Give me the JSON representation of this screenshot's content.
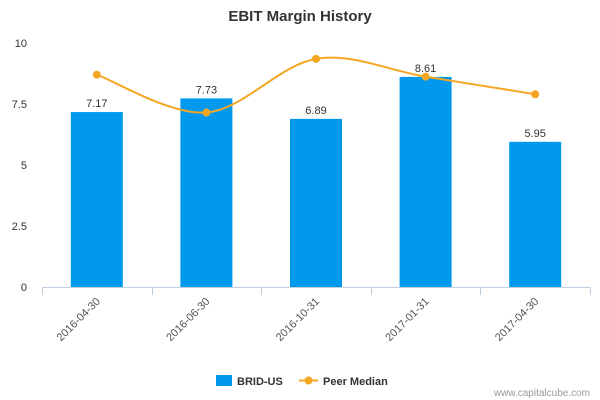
{
  "chart_data": {
    "type": "bar",
    "title": "EBIT Margin History",
    "xlabel": "",
    "ylabel": "",
    "categories": [
      "2016-04-30",
      "2016-06-30",
      "2016-10-31",
      "2017-01-31",
      "2017-04-30"
    ],
    "ylim": [
      0,
      10
    ],
    "yticks": [
      0,
      2.5,
      5,
      7.5,
      10
    ],
    "ytick_labels": [
      "0",
      "2.5",
      "5",
      "7.5",
      "10"
    ],
    "grid": false,
    "legend_position": "bottom-center",
    "series": [
      {
        "name": "BRID-US",
        "type": "bar",
        "color": "#0099ee",
        "values": [
          7.17,
          7.73,
          6.89,
          8.61,
          5.95
        ],
        "labels": [
          "7.17",
          "7.73",
          "6.89",
          "8.61",
          "5.95"
        ]
      },
      {
        "name": "Peer Median",
        "type": "line",
        "color": "#f5a623",
        "values": [
          8.7,
          7.15,
          9.35,
          8.62,
          7.9
        ]
      }
    ]
  },
  "credit": "www.capitalcube.com"
}
